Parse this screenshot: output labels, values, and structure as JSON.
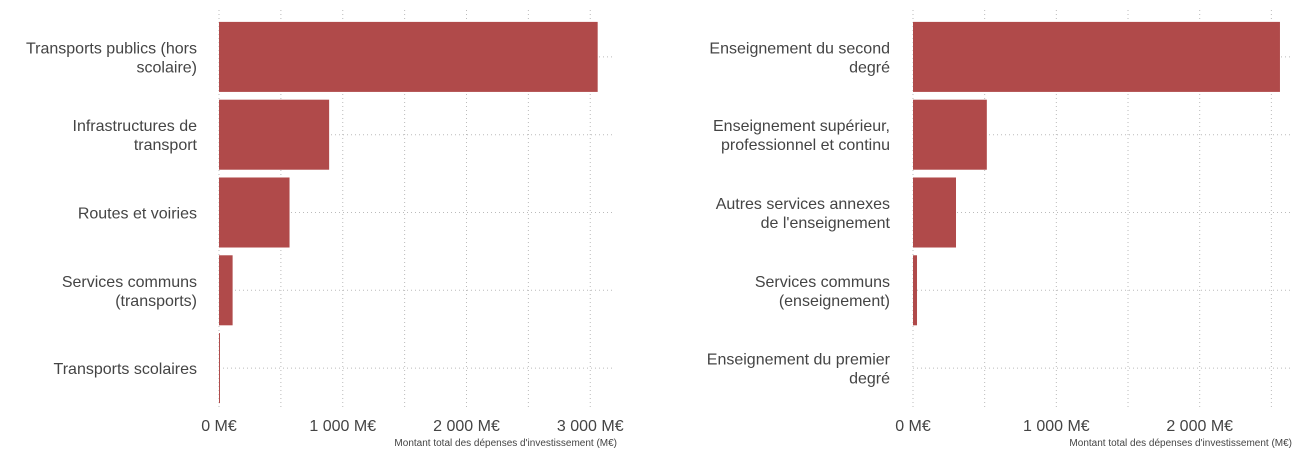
{
  "chart_data": [
    {
      "type": "barh",
      "categories": [
        "Transports publics (hors\nscolaire)",
        "Infrastructures de\ntransport",
        "Routes et voiries",
        "Services communs\n(transports)",
        "Transports scolaires"
      ],
      "values": [
        3060,
        890,
        570,
        110,
        8
      ],
      "color": "#b04a4a",
      "xlim": [
        0,
        3200
      ],
      "xticks": [
        {
          "value": 0,
          "label": "0 M€"
        },
        {
          "value": 1000,
          "label": "1 000 M€"
        },
        {
          "value": 2000,
          "label": "2 000 M€"
        },
        {
          "value": 3000,
          "label": "3 000 M€"
        }
      ],
      "xlabel": "Montant total des dépenses d'investissement (M€)",
      "grid": true,
      "minor_grid": true
    },
    {
      "type": "barh",
      "categories": [
        "Enseignement du second\ndegré",
        "Enseignement supérieur,\nprofessionnel et continu",
        "Autres services annexes\nde l'enseignement",
        "Services communs\n(enseignement)",
        "Enseignement du premier\ndegré"
      ],
      "values": [
        2560,
        515,
        300,
        28,
        0
      ],
      "color": "#b04a4a",
      "xlim": [
        0,
        2630
      ],
      "xticks": [
        {
          "value": 0,
          "label": "0 M€"
        },
        {
          "value": 1000,
          "label": "1 000 M€"
        },
        {
          "value": 2000,
          "label": "2 000 M€"
        }
      ],
      "xlabel": "Montant total des dépenses d'investissement (M€)",
      "grid": true,
      "minor_grid": true
    }
  ]
}
